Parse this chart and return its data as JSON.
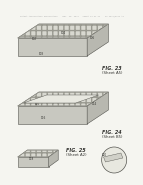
{
  "background_color": "#f5f5f0",
  "header_text": "Patent Application Publication    Mar. 22, 2012   Sheet 14 of 41    US 2012/0xxx A1",
  "fig23_label": "FIG. 23",
  "fig23_sub": "(Sheet A5)",
  "fig24_label": "FIG. 24",
  "fig24_sub": "(Sheet B5)",
  "fig25_label": "FIG. 25",
  "fig25_sub": "(Sheet A2)",
  "box_color": "#d0cfc8",
  "hatch_color": "#888880",
  "line_color": "#555550",
  "text_color": "#333330",
  "label_color": "#444440"
}
